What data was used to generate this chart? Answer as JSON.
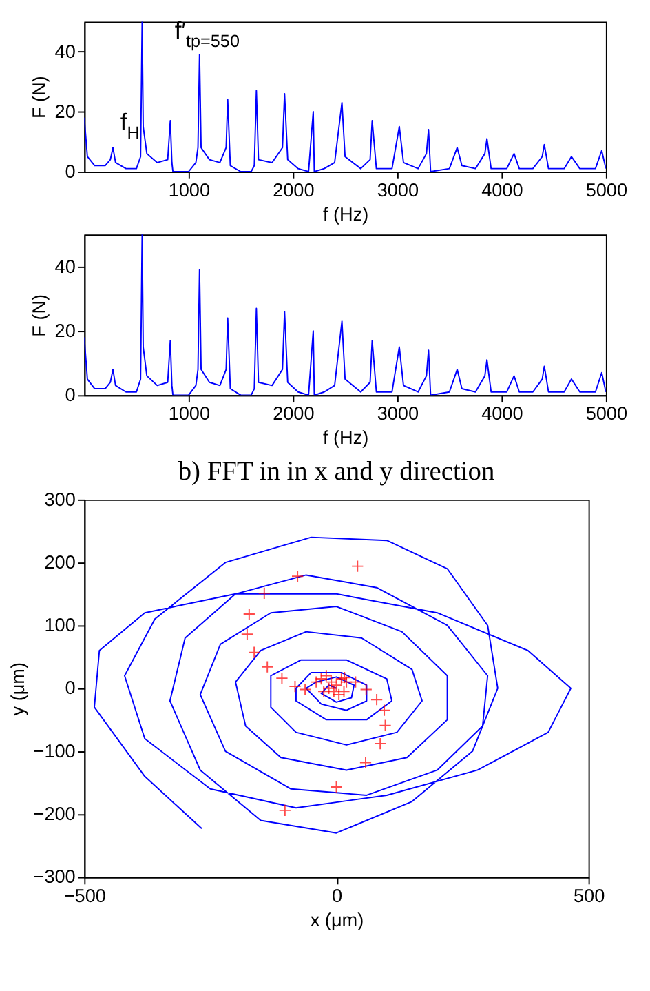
{
  "chart_data": [
    {
      "type": "line",
      "xlabel": "f (Hz)",
      "ylabel": "F (N)",
      "xlim": [
        0,
        5000
      ],
      "ylim": [
        0,
        50
      ],
      "xticks": [
        1000,
        2000,
        3000,
        4000,
        5000
      ],
      "yticks": [
        0,
        20,
        40
      ],
      "grid": false,
      "x": [
        0,
        30,
        100,
        200,
        250,
        275,
        300,
        400,
        500,
        540,
        555,
        565,
        600,
        700,
        800,
        825,
        840,
        850,
        1000,
        1070,
        1090,
        1105,
        1120,
        1200,
        1300,
        1360,
        1375,
        1400,
        1500,
        1600,
        1630,
        1650,
        1670,
        1800,
        1900,
        1920,
        1950,
        2050,
        2150,
        2195,
        2205,
        2300,
        2400,
        2470,
        2500,
        2650,
        2740,
        2760,
        2800,
        2950,
        3020,
        3060,
        3200,
        3280,
        3300,
        3320,
        3500,
        3575,
        3620,
        3750,
        3840,
        3860,
        3900,
        4050,
        4120,
        4170,
        4300,
        4390,
        4410,
        4450,
        4600,
        4670,
        4750,
        4900,
        4960,
        5000
      ],
      "series": [
        {
          "color": "#0000ff",
          "values": [
            18,
            5,
            2,
            2,
            4,
            8,
            3,
            1,
            1,
            5,
            50,
            15,
            6,
            3,
            4,
            17,
            3,
            0,
            0,
            3,
            8,
            39,
            8,
            4,
            3,
            8,
            24,
            2,
            0,
            0,
            2,
            27,
            4,
            3,
            8,
            26,
            4,
            1,
            0,
            20,
            0,
            1,
            3,
            23,
            5,
            1,
            4,
            17,
            1,
            1,
            15,
            3,
            1,
            6,
            14,
            0,
            1,
            8,
            2,
            1,
            6,
            11,
            1,
            1,
            6,
            1,
            1,
            5,
            9,
            1,
            1,
            5,
            1,
            1,
            7,
            1
          ]
        }
      ],
      "annotations": [
        "f$_{H}$",
        "f′$_{tp=550}$"
      ]
    },
    {
      "type": "line",
      "xlabel": "f (Hz)",
      "ylabel": "F (N)",
      "xlim": [
        0,
        5000
      ],
      "ylim": [
        0,
        50
      ],
      "xticks": [
        1000,
        2000,
        3000,
        4000,
        5000
      ],
      "yticks": [
        0,
        20,
        40
      ],
      "grid": false,
      "x": [
        0,
        30,
        100,
        200,
        250,
        275,
        300,
        400,
        500,
        540,
        555,
        565,
        600,
        700,
        800,
        825,
        840,
        850,
        1000,
        1070,
        1090,
        1105,
        1120,
        1200,
        1300,
        1360,
        1375,
        1400,
        1500,
        1600,
        1630,
        1650,
        1670,
        1800,
        1900,
        1920,
        1950,
        2050,
        2150,
        2195,
        2205,
        2300,
        2400,
        2470,
        2500,
        2650,
        2740,
        2760,
        2800,
        2950,
        3020,
        3060,
        3200,
        3280,
        3300,
        3320,
        3500,
        3575,
        3620,
        3750,
        3840,
        3860,
        3900,
        4050,
        4120,
        4170,
        4300,
        4390,
        4410,
        4450,
        4600,
        4670,
        4750,
        4900,
        4960,
        5000
      ],
      "series": [
        {
          "color": "#0000ff",
          "values": [
            18,
            5,
            2,
            2,
            4,
            8,
            3,
            1,
            1,
            5,
            50,
            15,
            6,
            3,
            4,
            17,
            3,
            0,
            0,
            3,
            8,
            39,
            8,
            4,
            3,
            8,
            24,
            2,
            0,
            0,
            2,
            27,
            4,
            3,
            8,
            26,
            4,
            1,
            0,
            20,
            0,
            1,
            3,
            23,
            5,
            1,
            4,
            17,
            1,
            1,
            15,
            3,
            1,
            6,
            14,
            0,
            1,
            8,
            2,
            1,
            6,
            11,
            1,
            1,
            6,
            1,
            1,
            5,
            9,
            1,
            1,
            5,
            1,
            1,
            7,
            1
          ]
        }
      ]
    },
    {
      "type": "line",
      "title": "b) FFT in in x and y direction",
      "xlabel": "x (μm)",
      "ylabel": "y (μm)",
      "xlim": [
        -500,
        500
      ],
      "ylim": [
        -300,
        300
      ],
      "xticks": [
        -500,
        0,
        500
      ],
      "yticks": [
        -300,
        -200,
        -100,
        0,
        100,
        200,
        300
      ],
      "grid": false,
      "series": [
        {
          "type": "line",
          "color": "#0000ff",
          "x": [
            -267,
            -380,
            -480,
            -470,
            -380,
            -200,
            0,
            200,
            380,
            465,
            420,
            280,
            100,
            -80,
            -250,
            -380,
            -420,
            -360,
            -220,
            -50,
            100,
            220,
            300,
            320,
            270,
            150,
            0,
            -150,
            -270,
            -330,
            -300,
            -200,
            -60,
            80,
            220,
            300,
            290,
            200,
            60,
            -90,
            -220,
            -270,
            -230,
            -130,
            0,
            130,
            220,
            220,
            140,
            20,
            -110,
            -180,
            -200,
            -150,
            -60,
            50,
            150,
            170,
            120,
            20,
            -80,
            -130,
            -130,
            -70,
            20,
            100,
            110,
            60,
            -20,
            -80,
            -80,
            -50,
            10,
            60,
            60,
            20,
            -30,
            -60,
            -40,
            0,
            35,
            30,
            0,
            -30,
            -15,
            0
          ],
          "values": [
            -223,
            -140,
            -30,
            60,
            120,
            150,
            150,
            120,
            60,
            0,
            -70,
            -130,
            -170,
            -190,
            -160,
            -80,
            20,
            110,
            200,
            240,
            235,
            190,
            100,
            0,
            -100,
            -180,
            -230,
            -210,
            -130,
            -20,
            80,
            150,
            180,
            160,
            100,
            20,
            -60,
            -130,
            -170,
            -160,
            -100,
            -10,
            70,
            120,
            130,
            90,
            20,
            -50,
            -110,
            -130,
            -110,
            -60,
            10,
            60,
            90,
            80,
            30,
            -20,
            -70,
            -90,
            -70,
            -30,
            20,
            45,
            45,
            15,
            -20,
            -50,
            -50,
            -20,
            0,
            25,
            25,
            5,
            -20,
            -35,
            -25,
            0,
            10,
            18,
            5,
            -15,
            -22,
            -8,
            5,
            0
          ]
        },
        {
          "type": "scatter",
          "marker": "cross",
          "color": "#ff0000",
          "x": [
            42,
            -77,
            -143,
            -173,
            -177,
            -163,
            -137,
            -108,
            -82,
            -62,
            -40,
            -30,
            -20,
            -10,
            0,
            10,
            20,
            -15,
            -5,
            5,
            -25,
            15,
            16,
            38,
            59,
            80,
            95,
            97,
            87,
            58,
            0,
            -102
          ],
          "values": [
            194,
            178,
            151,
            118,
            86,
            57,
            34,
            16,
            3,
            -2,
            10,
            15,
            20,
            10,
            5,
            15,
            10,
            0,
            -5,
            -10,
            -5,
            -5,
            17,
            10,
            -2,
            -18,
            -35,
            -59,
            -88,
            -118,
            -157,
            -194
          ]
        }
      ]
    }
  ]
}
